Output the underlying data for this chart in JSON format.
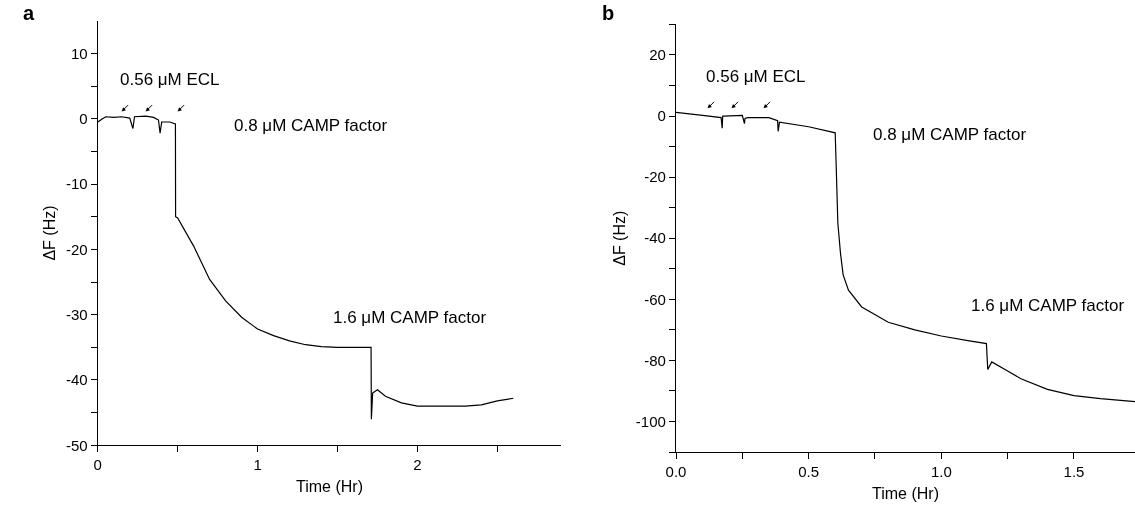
{
  "chart_data": [
    {
      "type": "line",
      "title": "a",
      "xlabel": "Time (Hr)",
      "ylabel": "ΔF (Hz)",
      "xlim": [
        0,
        2.9
      ],
      "ylim": [
        -50,
        15
      ],
      "xticks": [
        0,
        {
          "value": 0.5,
          "label": null
        },
        1,
        {
          "value": 1.5,
          "label": null
        },
        2,
        {
          "value": 2.5,
          "label": null
        }
      ],
      "yticks": [
        -50,
        {
          "value": -45,
          "label": null
        },
        -40,
        {
          "value": -35,
          "label": null
        },
        -30,
        {
          "value": -25,
          "label": null
        },
        -20,
        {
          "value": -15,
          "label": null
        },
        -10,
        {
          "value": -5,
          "label": null
        },
        0,
        {
          "value": 5,
          "label": null
        },
        10
      ],
      "annotations": [
        "0.56 μM ECL",
        "0.8 μM CAMP factor",
        "1.6 μM CAMP factor"
      ],
      "series": [
        {
          "color": "#000000",
          "x": [
            0,
            0.03,
            0.05,
            0.1,
            0.15,
            0.2,
            0.22,
            0.23,
            0.3,
            0.35,
            0.38,
            0.39,
            0.4,
            0.45,
            0.486,
            0.487,
            0.5,
            0.6,
            0.7,
            0.8,
            0.9,
            1.0,
            1.1,
            1.2,
            1.3,
            1.4,
            1.5,
            1.6,
            1.7,
            1.71,
            1.712,
            1.72,
            1.75,
            1.8,
            1.9,
            2.0,
            2.1,
            2.2,
            2.3,
            2.4,
            2.5,
            2.6
          ],
          "values": [
            -0.5,
            0,
            0.3,
            0.2,
            0.3,
            0.1,
            -1.5,
            0.3,
            0.4,
            0.2,
            -0.2,
            -2.2,
            -0.5,
            -0.5,
            -0.8,
            -15,
            -15.2,
            -19.5,
            -24.6,
            -27.9,
            -30.4,
            -32.2,
            -33.2,
            -34,
            -34.6,
            -34.9,
            -35,
            -35,
            -35,
            -35,
            -46,
            -42,
            -41.5,
            -42.5,
            -43.5,
            -44,
            -44,
            -44,
            -44,
            -43.8,
            -43.2,
            -42.8
          ]
        }
      ]
    },
    {
      "type": "line",
      "title": "b",
      "xlabel": "Time (Hr)",
      "ylabel": "ΔF (Hz)",
      "xlim": [
        0,
        1.73
      ],
      "ylim": [
        -110,
        30
      ],
      "xticks": [
        {
          "value": 0,
          "label": "0.0"
        },
        {
          "value": 0.25,
          "label": null
        },
        0.5,
        {
          "value": 0.75,
          "label": null
        },
        {
          "value": 1,
          "label": "1.0"
        },
        {
          "value": 1.25,
          "label": null
        },
        1.5
      ],
      "yticks": [
        {
          "value": -110,
          "label": null
        },
        -100,
        {
          "value": -90,
          "label": null
        },
        -80,
        {
          "value": -70,
          "label": null
        },
        -60,
        {
          "value": -50,
          "label": null
        },
        -40,
        {
          "value": -30,
          "label": null
        },
        -20,
        {
          "value": -10,
          "label": null
        },
        0,
        {
          "value": 10,
          "label": null
        },
        20,
        {
          "value": 30,
          "label": null
        }
      ],
      "annotations": [
        "0.56 μM ECL",
        "0.8 μM CAMP factor",
        "1.6 μM CAMP factor"
      ],
      "series": [
        {
          "color": "#000000",
          "x": [
            0,
            0.1,
            0.17,
            0.174,
            0.176,
            0.18,
            0.25,
            0.258,
            0.26,
            0.27,
            0.35,
            0.383,
            0.385,
            0.39,
            0.5,
            0.6,
            0.605,
            0.61,
            0.62,
            0.63,
            0.65,
            0.7,
            0.8,
            0.9,
            1.0,
            1.1,
            1.17,
            1.175,
            1.19,
            1.25,
            1.3,
            1.4,
            1.5,
            1.6,
            1.73
          ],
          "values": [
            1.2,
            0.2,
            -0.5,
            -4,
            0,
            0,
            0.2,
            -2.5,
            -0.8,
            -0.5,
            -0.5,
            -1.5,
            -5,
            -2,
            -3.5,
            -5.5,
            -20,
            -35,
            -45,
            -52,
            -57,
            -62.5,
            -67.5,
            -70,
            -72,
            -73.5,
            -74.5,
            -83,
            -80.5,
            -83.5,
            -86,
            -89.5,
            -91.5,
            -92.5,
            -93.5
          ]
        }
      ]
    }
  ]
}
